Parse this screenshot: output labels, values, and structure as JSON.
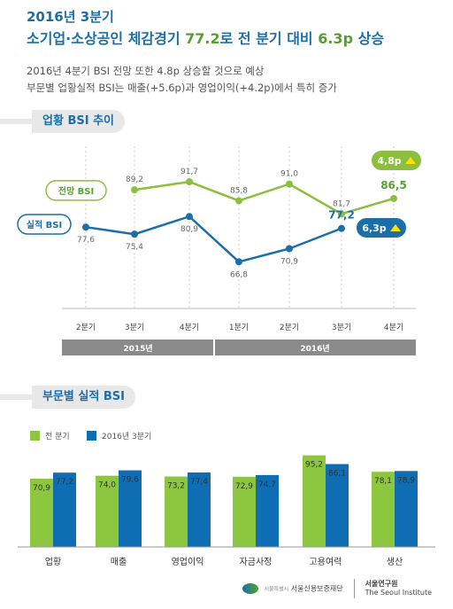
{
  "header": {
    "line1": "2016년 3분기",
    "line2_pre": "소기업·소상공인 체감경기 ",
    "line2_val1": "77.2",
    "line2_mid": "로 전 분기 대비 ",
    "line2_val2": "6.3p",
    "line2_post": " 상승",
    "sub1": "2016년 4분기 BSI 전망 또한 4.8p 상승할 것으로 예상",
    "sub2": "부문별 업황실적 BSI는 매출(+5.6p)과 영업이익(+4.2p)에서 특히 증가"
  },
  "section1": {
    "title": "업황 BSI 추이"
  },
  "section2": {
    "title": "부문별 실적 BSI"
  },
  "colors": {
    "blue": "#1b6fa8",
    "green": "#8dbf3e",
    "darkgreen": "#53a22e",
    "bar_green": "#8dc63f",
    "bar_blue": "#0f6db3",
    "yearbar": "#8a8a8a"
  },
  "chart_data": [
    {
      "type": "line",
      "title": "업황 BSI 추이",
      "categories": [
        "2분기",
        "3분기",
        "4분기",
        "1분기",
        "2분기",
        "3분기",
        "4분기"
      ],
      "year_groups": [
        {
          "label": "2015년",
          "span": [
            0,
            3
          ]
        },
        {
          "label": "2016년",
          "span": [
            3,
            7
          ]
        }
      ],
      "series": [
        {
          "name": "전망 BSI",
          "values": [
            null,
            89.2,
            91.7,
            85.8,
            91.0,
            81.7,
            86.5
          ],
          "labels": [
            "",
            "89,2",
            "91,7",
            "85,8",
            "91,0",
            "81,7",
            "86,5"
          ]
        },
        {
          "name": "실적 BSI",
          "values": [
            77.6,
            75.4,
            80.9,
            66.8,
            70.9,
            77.2,
            null
          ],
          "labels": [
            "77,6",
            "75,4",
            "80,9",
            "66,8",
            "70,9",
            "77,2",
            ""
          ]
        }
      ],
      "badges": [
        {
          "series": "전망 BSI",
          "text": "4,8p"
        },
        {
          "series": "실적 BSI",
          "text": "6,3p"
        }
      ],
      "ylim": [
        60,
        100
      ]
    },
    {
      "type": "bar",
      "title": "부문별 실적 BSI",
      "categories": [
        "업황",
        "매출",
        "영업이익",
        "자금사정",
        "고용여력",
        "생산"
      ],
      "series": [
        {
          "name": "전 분기",
          "values": [
            70.9,
            74.0,
            73.2,
            72.9,
            95.2,
            78.1
          ],
          "labels": [
            "70,9",
            "74,0",
            "73,2",
            "72,9",
            "95,2",
            "78,1"
          ]
        },
        {
          "name": "2016년 3분기",
          "values": [
            77.2,
            79.6,
            77.4,
            74.7,
            86.1,
            78.9
          ],
          "labels": [
            "77,2",
            "79,6",
            "77,4",
            "74,7",
            "86,1",
            "78,9"
          ]
        }
      ],
      "ylim": [
        0,
        105
      ]
    }
  ],
  "footer": {
    "org1": "서울신용보증재단",
    "org1_small": "서울특별시",
    "org2_ko": "서울연구원",
    "org2_en": "The Seoul Institute"
  }
}
